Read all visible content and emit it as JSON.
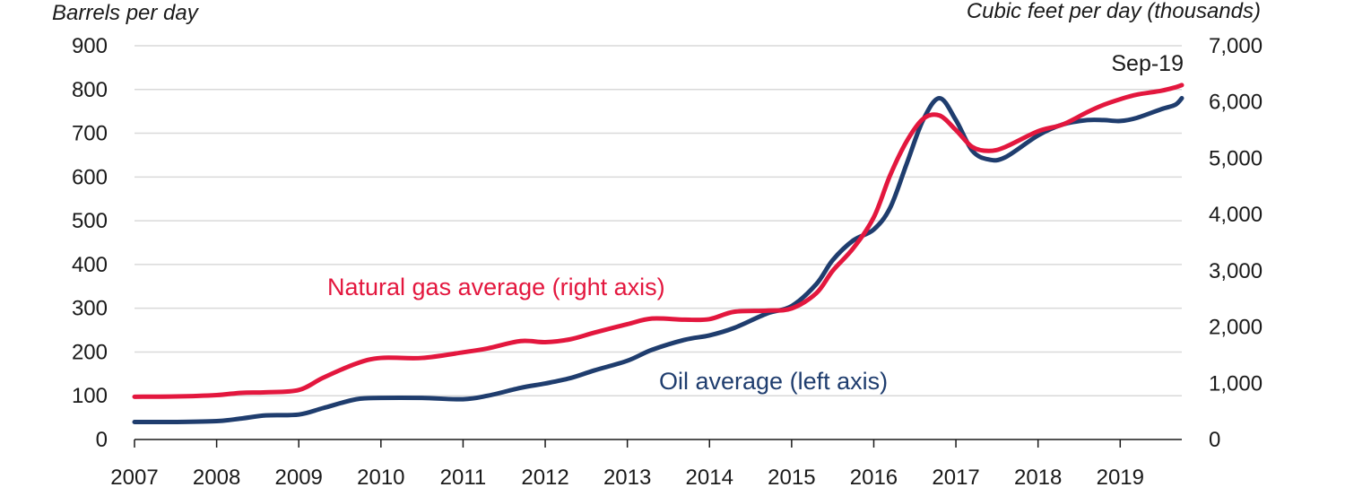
{
  "chart_data": {
    "type": "line",
    "left_axis_title": "Barrels per day",
    "right_axis_title": "Cubic feet per day (thousands)",
    "x_tick_labels": [
      "2007",
      "2008",
      "2009",
      "2010",
      "2011",
      "2012",
      "2013",
      "2014",
      "2015",
      "2016",
      "2017",
      "2018",
      "2019"
    ],
    "x_range": [
      2007,
      2019.75
    ],
    "left_ticks": [
      "0",
      "100",
      "200",
      "300",
      "400",
      "500",
      "600",
      "700",
      "800",
      "900"
    ],
    "left_ylim": [
      0,
      900
    ],
    "right_ticks": [
      "0",
      "1,000",
      "2,000",
      "3,000",
      "4,000",
      "5,000",
      "6,000",
      "7,000"
    ],
    "right_ylim": [
      0,
      7000
    ],
    "grid": "horizontal",
    "annotation": "Sep-19",
    "colors": {
      "oil": "#1f3d6e",
      "gas": "#e3173e"
    },
    "series": [
      {
        "name": "Oil average (left axis)",
        "axis": "left",
        "color": "#1f3d6e",
        "x": [
          2007,
          2007.5,
          2008,
          2008.3,
          2008.6,
          2009,
          2009.3,
          2009.7,
          2010,
          2010.5,
          2011,
          2011.3,
          2011.7,
          2012,
          2012.3,
          2012.6,
          2013,
          2013.3,
          2013.7,
          2014,
          2014.3,
          2014.7,
          2015,
          2015.3,
          2015.5,
          2015.75,
          2016,
          2016.2,
          2016.4,
          2016.6,
          2016.8,
          2017,
          2017.2,
          2017.4,
          2017.6,
          2018,
          2018.3,
          2018.6,
          2018.8,
          2019,
          2019.2,
          2019.5,
          2019.67,
          2019.75
        ],
        "values": [
          40,
          40,
          42,
          48,
          55,
          57,
          72,
          92,
          95,
          95,
          92,
          100,
          118,
          128,
          140,
          158,
          180,
          205,
          228,
          238,
          255,
          288,
          305,
          355,
          410,
          455,
          480,
          530,
          630,
          730,
          780,
          730,
          660,
          640,
          645,
          695,
          720,
          730,
          730,
          728,
          735,
          755,
          765,
          780
        ]
      },
      {
        "name": "Natural gas average (right axis)",
        "axis": "right",
        "color": "#e3173e",
        "x": [
          2007,
          2007.5,
          2008,
          2008.3,
          2008.6,
          2009,
          2009.3,
          2009.7,
          2010,
          2010.5,
          2011,
          2011.3,
          2011.7,
          2012,
          2012.3,
          2012.6,
          2013,
          2013.3,
          2013.7,
          2014,
          2014.3,
          2014.7,
          2015,
          2015.3,
          2015.5,
          2015.75,
          2016,
          2016.2,
          2016.4,
          2016.6,
          2016.8,
          2017,
          2017.2,
          2017.4,
          2017.6,
          2018,
          2018.3,
          2018.6,
          2018.8,
          2019,
          2019.2,
          2019.5,
          2019.67,
          2019.75
        ],
        "values": [
          760,
          765,
          790,
          830,
          840,
          880,
          1100,
          1350,
          1450,
          1450,
          1550,
          1620,
          1750,
          1730,
          1780,
          1900,
          2050,
          2150,
          2130,
          2140,
          2270,
          2290,
          2330,
          2600,
          3000,
          3400,
          3950,
          4700,
          5300,
          5700,
          5760,
          5500,
          5200,
          5130,
          5200,
          5480,
          5600,
          5820,
          5950,
          6050,
          6130,
          6200,
          6260,
          6300
        ]
      }
    ]
  }
}
